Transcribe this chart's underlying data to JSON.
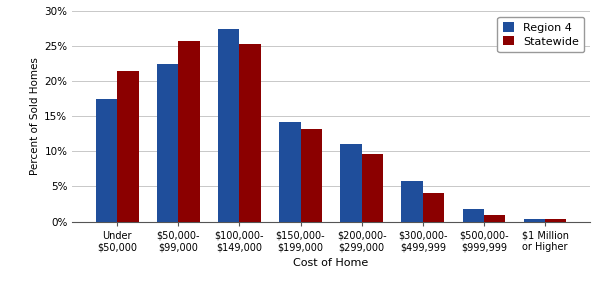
{
  "categories": [
    "Under\n$50,000",
    "$50,000-\n$99,000",
    "$100,000-\n$149,000",
    "$150,000-\n$199,000",
    "$200,000-\n$299,000",
    "$300,000-\n$499,999",
    "$500,000-\n$999,999",
    "$1 Million\nor Higher"
  ],
  "region4": [
    17.5,
    22.5,
    27.5,
    14.2,
    11.1,
    5.8,
    1.8,
    0.3
  ],
  "statewide": [
    21.5,
    25.8,
    25.4,
    13.2,
    9.6,
    4.0,
    1.0,
    0.3
  ],
  "region4_color": "#1F4E9B",
  "statewide_color": "#8B0000",
  "xlabel": "Cost of Home",
  "ylabel": "Percent of Sold Homes",
  "ylim": [
    0,
    30
  ],
  "yticks": [
    0,
    5,
    10,
    15,
    20,
    25,
    30
  ],
  "ytick_labels": [
    "0%",
    "5%",
    "10%",
    "15%",
    "20%",
    "25%",
    "30%"
  ],
  "legend_labels": [
    "Region 4",
    "Statewide"
  ],
  "bar_width": 0.35,
  "background_color": "#ffffff",
  "grid_color": "#c8c8c8"
}
